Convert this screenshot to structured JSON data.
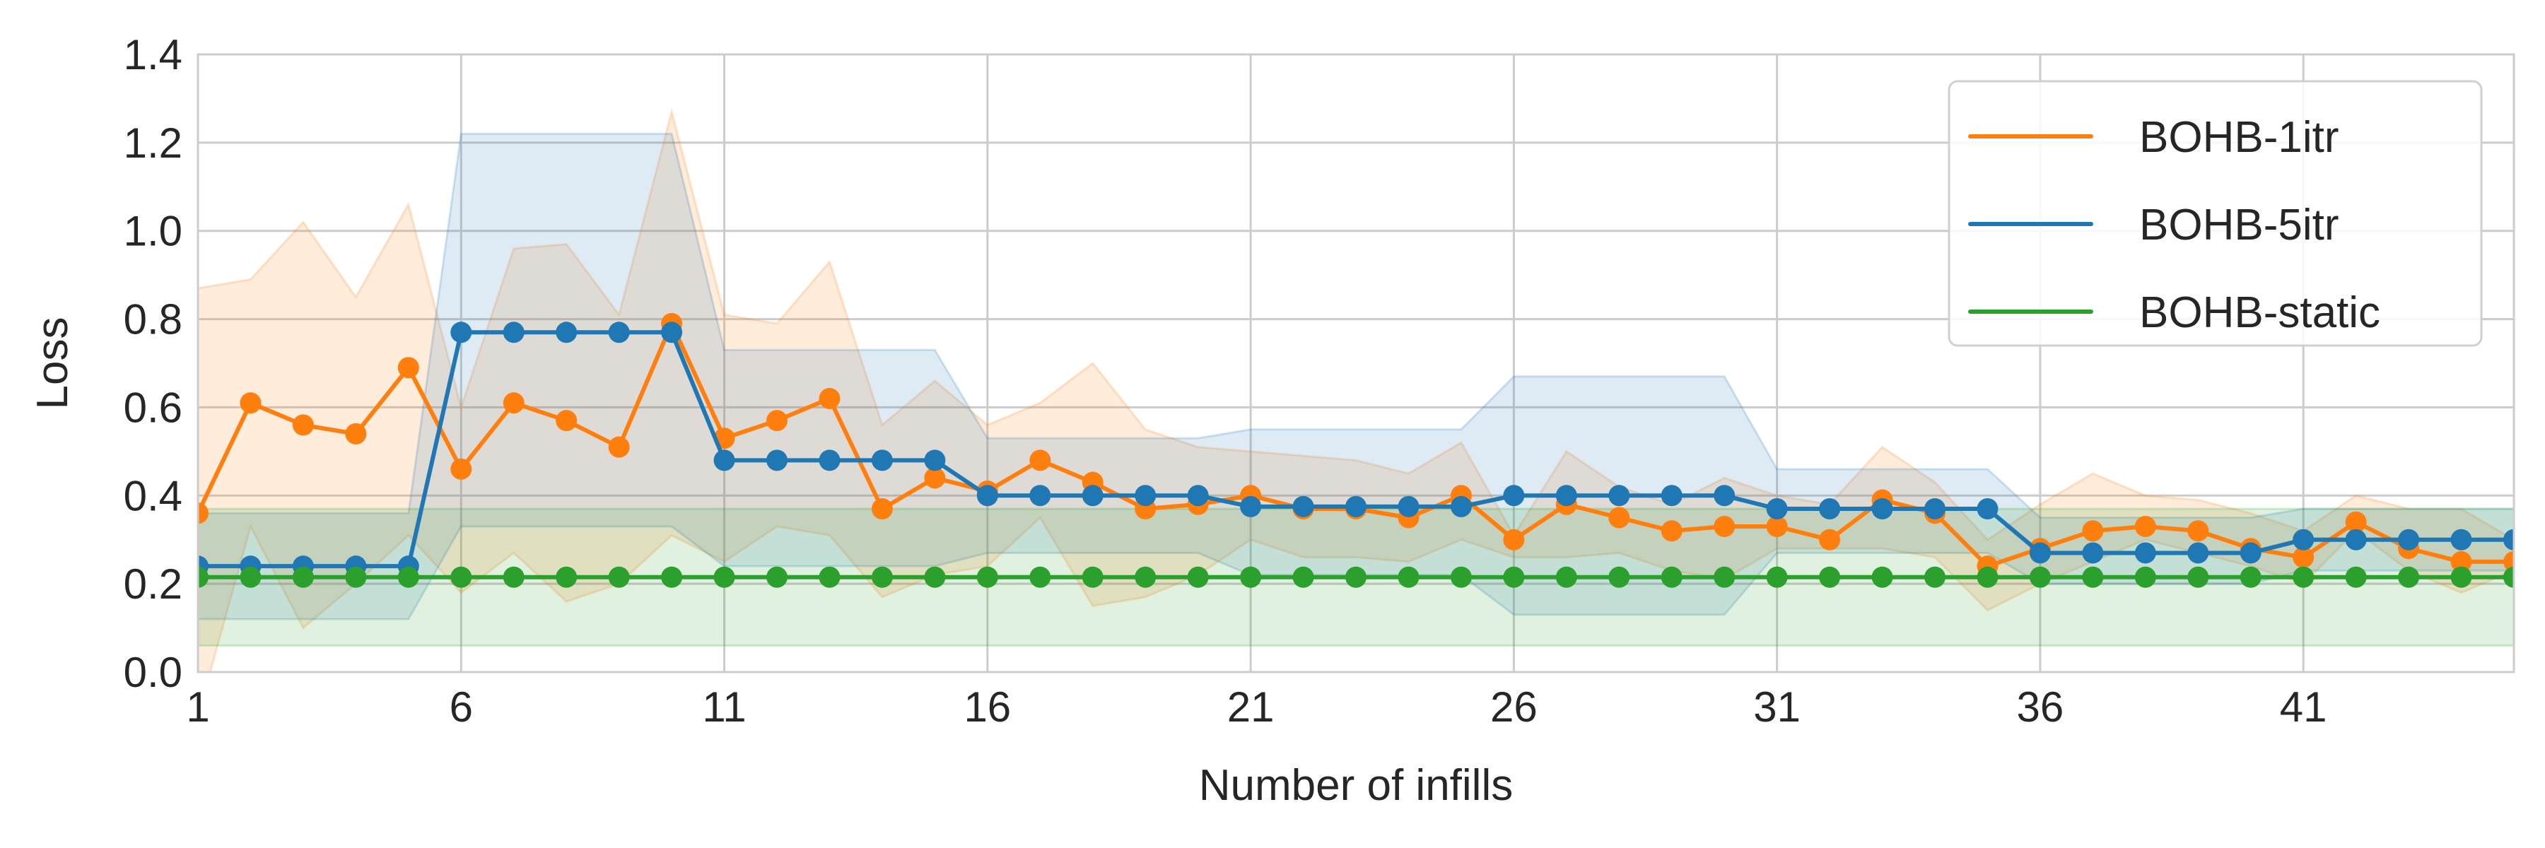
{
  "chart_data": {
    "type": "line",
    "title": "",
    "xlabel": "Number of infills",
    "ylabel": "Loss",
    "xlim": [
      1,
      45
    ],
    "ylim": [
      0,
      1.4
    ],
    "xticks": [
      "1",
      "6",
      "11",
      "16",
      "21",
      "26",
      "31",
      "36",
      "41"
    ],
    "yticks": [
      "0.0",
      "0.2",
      "0.4",
      "0.6",
      "0.8",
      "1.0",
      "1.2",
      "1.4"
    ],
    "grid": true,
    "legend_position": "top-right",
    "x": [
      1,
      2,
      3,
      4,
      5,
      6,
      7,
      8,
      9,
      10,
      11,
      12,
      13,
      14,
      15,
      16,
      17,
      18,
      19,
      20,
      21,
      22,
      23,
      24,
      25,
      26,
      27,
      28,
      29,
      30,
      31,
      32,
      33,
      34,
      35,
      36,
      37,
      38,
      39,
      40,
      41,
      42,
      43,
      44,
      45
    ],
    "series": [
      {
        "name": "BOHB-1itr",
        "color": "#ff7f0e",
        "values": [
          0.36,
          0.61,
          0.56,
          0.54,
          0.69,
          0.46,
          0.61,
          0.57,
          0.51,
          0.79,
          0.53,
          0.57,
          0.62,
          0.37,
          0.44,
          0.41,
          0.48,
          0.43,
          0.37,
          0.38,
          0.4,
          0.37,
          0.37,
          0.35,
          0.4,
          0.3,
          0.38,
          0.35,
          0.32,
          0.33,
          0.33,
          0.3,
          0.39,
          0.36,
          0.24,
          0.28,
          0.32,
          0.33,
          0.32,
          0.28,
          0.26,
          0.34,
          0.28,
          0.25,
          0.25
        ],
        "upper": [
          0.87,
          0.89,
          1.02,
          0.85,
          1.06,
          0.6,
          0.96,
          0.97,
          0.81,
          1.27,
          0.81,
          0.79,
          0.93,
          0.56,
          0.66,
          0.56,
          0.61,
          0.7,
          0.55,
          0.51,
          0.5,
          0.49,
          0.48,
          0.45,
          0.52,
          0.31,
          0.5,
          0.42,
          0.38,
          0.44,
          0.4,
          0.38,
          0.51,
          0.43,
          0.3,
          0.38,
          0.45,
          0.4,
          0.39,
          0.36,
          0.32,
          0.4,
          0.37,
          0.37,
          0.3
        ],
        "lower": [
          -0.1,
          0.33,
          0.1,
          0.2,
          0.31,
          0.18,
          0.27,
          0.16,
          0.2,
          0.31,
          0.25,
          0.33,
          0.31,
          0.17,
          0.22,
          0.24,
          0.35,
          0.15,
          0.17,
          0.22,
          0.3,
          0.26,
          0.26,
          0.25,
          0.3,
          0.26,
          0.26,
          0.27,
          0.23,
          0.21,
          0.28,
          0.28,
          0.28,
          0.26,
          0.14,
          0.2,
          0.25,
          0.3,
          0.27,
          0.24,
          0.2,
          0.32,
          0.23,
          0.18,
          0.23
        ]
      },
      {
        "name": "BOHB-5itr",
        "color": "#1f77b4",
        "values": [
          0.24,
          0.24,
          0.24,
          0.24,
          0.24,
          0.77,
          0.77,
          0.77,
          0.77,
          0.77,
          0.48,
          0.48,
          0.48,
          0.48,
          0.48,
          0.4,
          0.4,
          0.4,
          0.4,
          0.4,
          0.375,
          0.375,
          0.375,
          0.375,
          0.375,
          0.4,
          0.4,
          0.4,
          0.4,
          0.4,
          0.37,
          0.37,
          0.37,
          0.37,
          0.37,
          0.27,
          0.27,
          0.27,
          0.27,
          0.27,
          0.3,
          0.3,
          0.3,
          0.3,
          0.3
        ],
        "upper": [
          0.36,
          0.36,
          0.36,
          0.36,
          0.36,
          1.22,
          1.22,
          1.22,
          1.22,
          1.22,
          0.73,
          0.73,
          0.73,
          0.73,
          0.73,
          0.53,
          0.53,
          0.53,
          0.53,
          0.53,
          0.55,
          0.55,
          0.55,
          0.55,
          0.55,
          0.67,
          0.67,
          0.67,
          0.67,
          0.67,
          0.46,
          0.46,
          0.46,
          0.46,
          0.46,
          0.35,
          0.35,
          0.35,
          0.35,
          0.35,
          0.37,
          0.37,
          0.37,
          0.37,
          0.37
        ],
        "lower": [
          0.12,
          0.12,
          0.12,
          0.12,
          0.12,
          0.33,
          0.33,
          0.33,
          0.33,
          0.33,
          0.24,
          0.24,
          0.24,
          0.24,
          0.24,
          0.27,
          0.27,
          0.27,
          0.27,
          0.27,
          0.22,
          0.22,
          0.22,
          0.22,
          0.22,
          0.13,
          0.13,
          0.13,
          0.13,
          0.13,
          0.27,
          0.27,
          0.27,
          0.27,
          0.27,
          0.2,
          0.2,
          0.2,
          0.2,
          0.2,
          0.23,
          0.23,
          0.23,
          0.23,
          0.23
        ]
      },
      {
        "name": "BOHB-static",
        "color": "#2ca02c",
        "values": [
          0.215,
          0.215,
          0.215,
          0.215,
          0.215,
          0.215,
          0.215,
          0.215,
          0.215,
          0.215,
          0.215,
          0.215,
          0.215,
          0.215,
          0.215,
          0.215,
          0.215,
          0.215,
          0.215,
          0.215,
          0.215,
          0.215,
          0.215,
          0.215,
          0.215,
          0.215,
          0.215,
          0.215,
          0.215,
          0.215,
          0.215,
          0.215,
          0.215,
          0.215,
          0.215,
          0.215,
          0.215,
          0.215,
          0.215,
          0.215,
          0.215,
          0.215,
          0.215,
          0.215,
          0.215
        ],
        "upper": [
          0.37,
          0.37,
          0.37,
          0.37,
          0.37,
          0.37,
          0.37,
          0.37,
          0.37,
          0.37,
          0.37,
          0.37,
          0.37,
          0.37,
          0.37,
          0.37,
          0.37,
          0.37,
          0.37,
          0.37,
          0.37,
          0.37,
          0.37,
          0.37,
          0.37,
          0.37,
          0.37,
          0.37,
          0.37,
          0.37,
          0.37,
          0.37,
          0.37,
          0.37,
          0.37,
          0.37,
          0.37,
          0.37,
          0.37,
          0.37,
          0.37,
          0.37,
          0.37,
          0.37,
          0.37
        ],
        "lower": [
          0.06,
          0.06,
          0.06,
          0.06,
          0.06,
          0.06,
          0.06,
          0.06,
          0.06,
          0.06,
          0.06,
          0.06,
          0.06,
          0.06,
          0.06,
          0.06,
          0.06,
          0.06,
          0.06,
          0.06,
          0.06,
          0.06,
          0.06,
          0.06,
          0.06,
          0.06,
          0.06,
          0.06,
          0.06,
          0.06,
          0.06,
          0.06,
          0.06,
          0.06,
          0.06,
          0.06,
          0.06,
          0.06,
          0.06,
          0.06,
          0.06,
          0.06,
          0.06,
          0.06,
          0.06
        ]
      }
    ]
  }
}
